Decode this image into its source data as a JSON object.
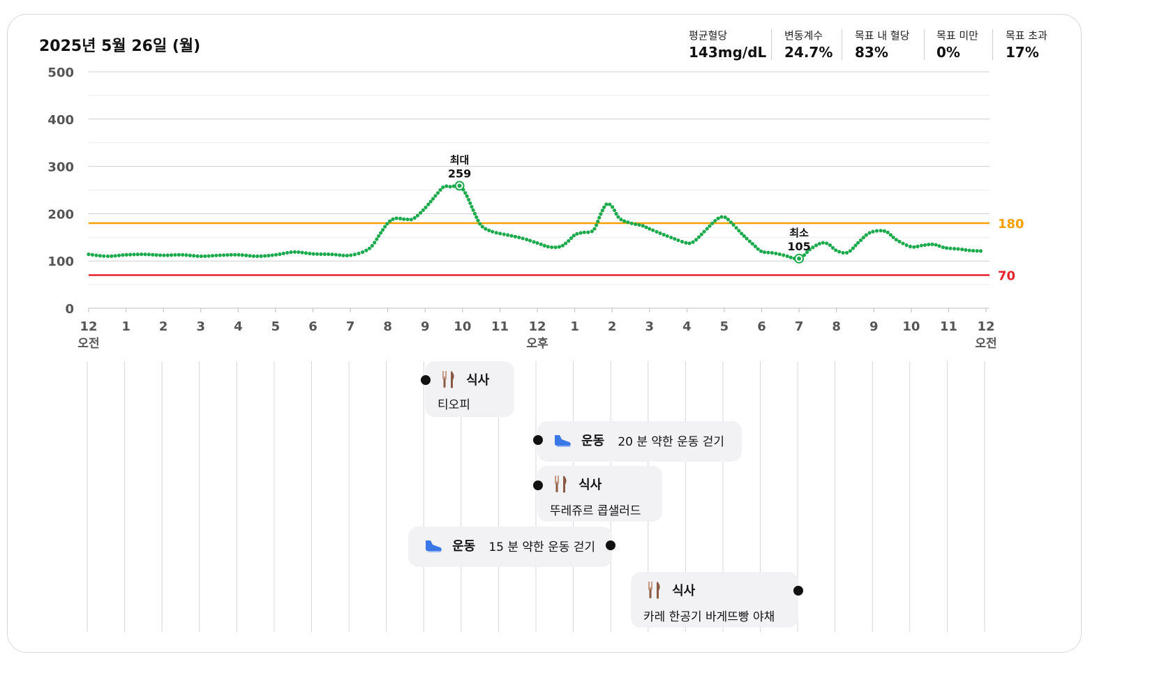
{
  "header": {
    "date": "2025년 5월 26일 (월)",
    "stats": [
      {
        "label": "평균혈당",
        "value": "143mg/dL"
      },
      {
        "label": "변동계수",
        "value": "24.7%"
      },
      {
        "label": "목표 내 혈당",
        "value": "83%"
      },
      {
        "label": "목표 미만",
        "value": "0%"
      },
      {
        "label": "목표 초과",
        "value": "17%"
      }
    ]
  },
  "chart_data": {
    "type": "line",
    "ylim": [
      0,
      500
    ],
    "y_ticks": [
      "0",
      "100",
      "200",
      "300",
      "400",
      "500"
    ],
    "x_ticks": [
      "12",
      "1",
      "2",
      "3",
      "4",
      "5",
      "6",
      "7",
      "8",
      "9",
      "10",
      "11",
      "12",
      "1",
      "2",
      "3",
      "4",
      "5",
      "6",
      "7",
      "8",
      "9",
      "10",
      "11",
      "12"
    ],
    "x_sublabels": [
      {
        "hour": 0,
        "text": "오전"
      },
      {
        "hour": 12,
        "text": "오후"
      },
      {
        "hour": 24,
        "text": "오전"
      }
    ],
    "grid": true,
    "thresholds": [
      {
        "value": 180,
        "label": "180",
        "color": "#f5a000"
      },
      {
        "value": 70,
        "label": "70",
        "color": "#e8222c"
      }
    ],
    "line_color": "#1aaa4b",
    "max_annotation": {
      "label": "최대",
      "value": "259",
      "hour": 9.92,
      "glucose": 259
    },
    "min_annotation": {
      "label": "최소",
      "value": "105",
      "hour": 19.0,
      "glucose": 105
    },
    "series": [
      {
        "hours": [
          0,
          0.5,
          1,
          1.5,
          2,
          2.5,
          3,
          3.5,
          4,
          4.5,
          5,
          5.5,
          6,
          6.5,
          7,
          7.5,
          7.8,
          8,
          8.2,
          8.5,
          8.7,
          9.0,
          9.3,
          9.5,
          9.7,
          9.92,
          10.1,
          10.3,
          10.5,
          10.8,
          11.2,
          11.6,
          12.0,
          12.3,
          12.6,
          12.8,
          13.0,
          13.2,
          13.5,
          13.7,
          13.85,
          14.0,
          14.2,
          14.5,
          14.8,
          15.0,
          15.5,
          16.0,
          16.2,
          16.5,
          16.8,
          17.0,
          17.2,
          17.5,
          17.8,
          18.0,
          18.3,
          18.6,
          19.0,
          19.3,
          19.6,
          19.8,
          20.0,
          20.3,
          20.6,
          20.9,
          21.3,
          21.6,
          22.0,
          22.3,
          22.6,
          22.9,
          23.3,
          23.6,
          23.9
        ],
        "values": [
          114,
          110,
          113,
          114,
          112,
          113,
          110,
          112,
          113,
          110,
          113,
          119,
          115,
          114,
          112,
          126,
          158,
          180,
          190,
          188,
          190,
          212,
          240,
          257,
          257,
          259,
          240,
          205,
          175,
          162,
          155,
          148,
          138,
          130,
          130,
          140,
          155,
          160,
          165,
          200,
          220,
          215,
          190,
          180,
          175,
          168,
          152,
          138,
          142,
          165,
          188,
          193,
          180,
          155,
          133,
          120,
          117,
          112,
          105,
          125,
          138,
          135,
          122,
          118,
          140,
          160,
          163,
          145,
          130,
          133,
          135,
          128,
          125,
          122,
          121
        ]
      }
    ]
  },
  "events": [
    {
      "type": "meal",
      "title": "식사",
      "desc": "티오피"
    },
    {
      "type": "exercise",
      "title": "운동",
      "desc": "20 분 약한 운동 걷기"
    },
    {
      "type": "meal",
      "title": "식사",
      "desc": "뚜레쥬르 콥샐러드"
    },
    {
      "type": "exercise",
      "title": "운동",
      "desc": "15 분 약한 운동 걷기"
    },
    {
      "type": "meal",
      "title": "식사",
      "desc": "카레 한공기 바게뜨빵 야채"
    }
  ]
}
